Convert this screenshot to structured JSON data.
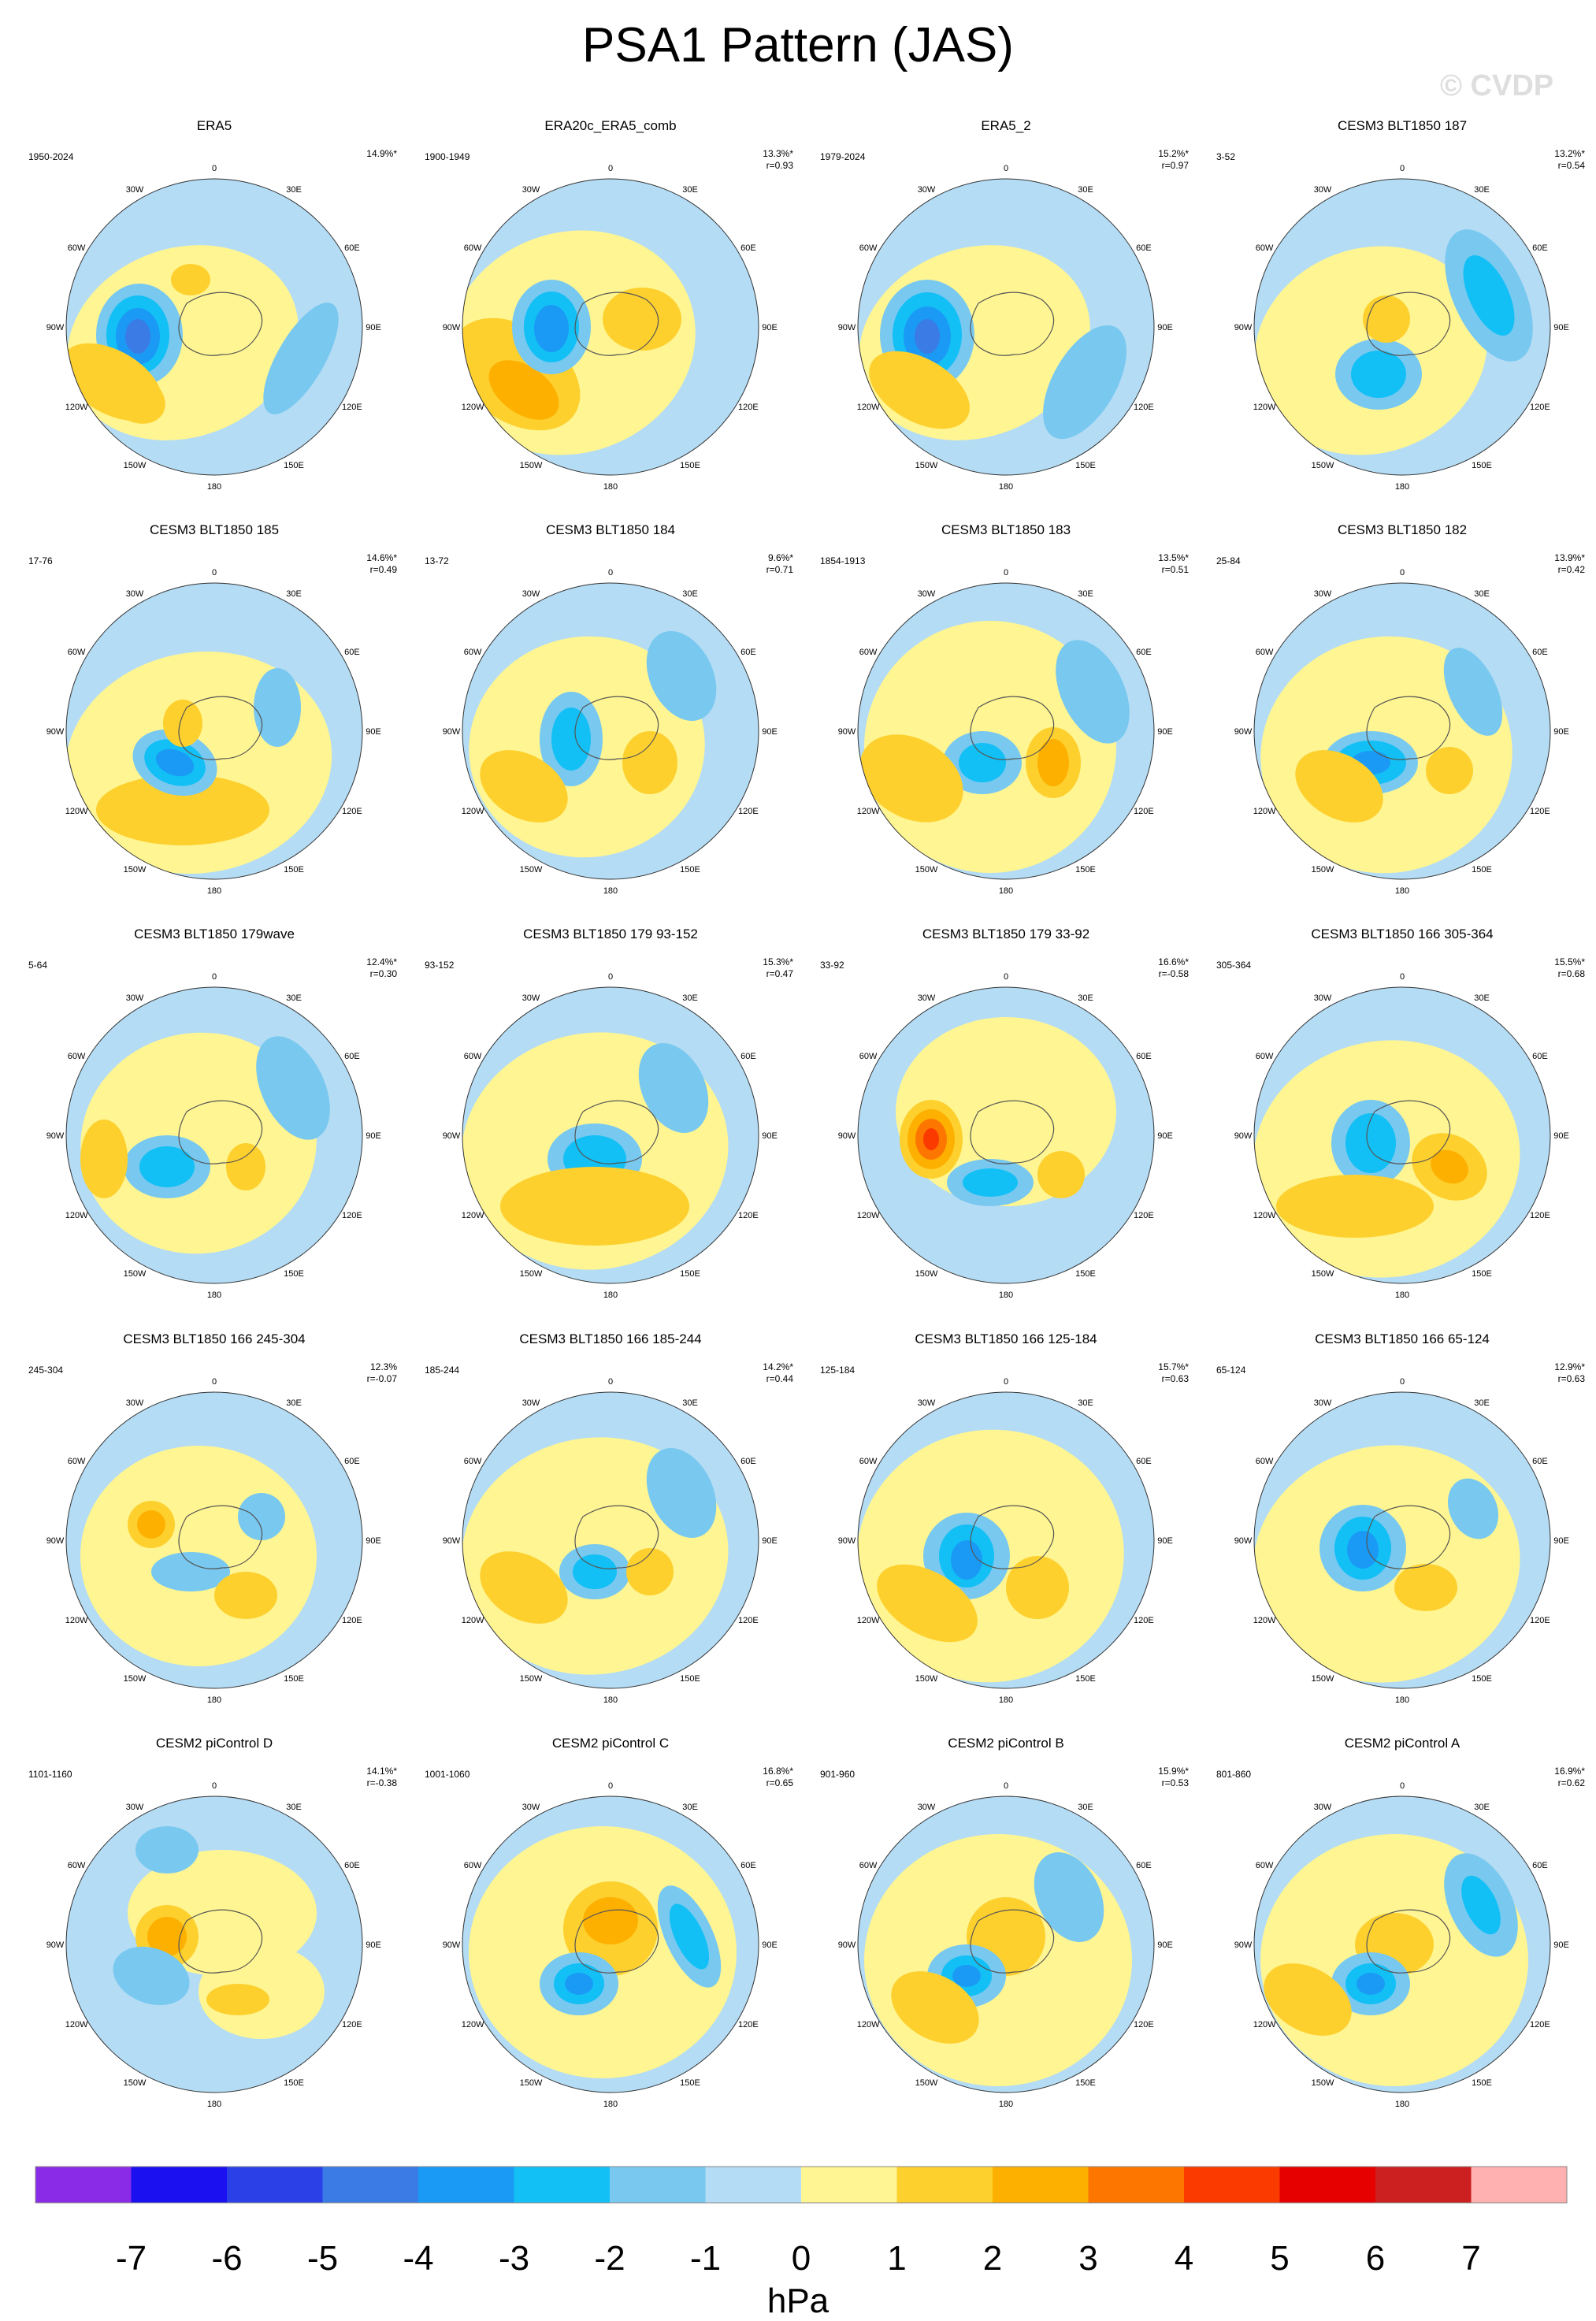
{
  "title": "PSA1 Pattern (JAS)",
  "watermark": "© CVDP",
  "colorbar": {
    "units": "hPa",
    "labels": [
      "-7",
      "-6",
      "-5",
      "-4",
      "-3",
      "-2",
      "-1",
      "0",
      "1",
      "2",
      "3",
      "4",
      "5",
      "6",
      "7"
    ],
    "colors": [
      "#8a2be8",
      "#1a10f0",
      "#2b40e6",
      "#3a7be6",
      "#1a9af5",
      "#12c0f5",
      "#78c8f0",
      "#b4dcf4",
      "#fff592",
      "#fdd02e",
      "#fdb000",
      "#fc7600",
      "#fb3a00",
      "#e60000",
      "#cc2020",
      "#ffb0b0"
    ]
  },
  "lon_labels": [
    "0",
    "30E",
    "60E",
    "90E",
    "120E",
    "150E",
    "180",
    "150W",
    "120W",
    "90W",
    "60W",
    "30W"
  ],
  "panels": [
    {
      "name": "ERA5",
      "period": "1950-2024",
      "pct": "14.9%*",
      "r": ""
    },
    {
      "name": "ERA20c_ERA5_comb",
      "period": "1900-1949",
      "pct": "13.3%*",
      "r": "r=0.93"
    },
    {
      "name": "ERA5_2",
      "period": "1979-2024",
      "pct": "15.2%*",
      "r": "r=0.97"
    },
    {
      "name": "CESM3 BLT1850 187",
      "period": "3-52",
      "pct": "13.2%*",
      "r": "r=0.54"
    },
    {
      "name": "CESM3 BLT1850 185",
      "period": "17-76",
      "pct": "14.6%*",
      "r": "r=0.49"
    },
    {
      "name": "CESM3 BLT1850 184",
      "period": "13-72",
      "pct": "9.6%*",
      "r": "r=0.71"
    },
    {
      "name": "CESM3 BLT1850 183",
      "period": "1854-1913",
      "pct": "13.5%*",
      "r": "r=0.51"
    },
    {
      "name": "CESM3 BLT1850 182",
      "period": "25-84",
      "pct": "13.9%*",
      "r": "r=0.42"
    },
    {
      "name": "CESM3 BLT1850 179wave",
      "period": "5-64",
      "pct": "12.4%*",
      "r": "r=0.30"
    },
    {
      "name": "CESM3 BLT1850 179 93-152",
      "period": "93-152",
      "pct": "15.3%*",
      "r": "r=0.47"
    },
    {
      "name": "CESM3 BLT1850 179 33-92",
      "period": "33-92",
      "pct": "16.6%*",
      "r": "r=-0.58"
    },
    {
      "name": "CESM3 BLT1850 166 305-364",
      "period": "305-364",
      "pct": "15.5%*",
      "r": "r=0.68"
    },
    {
      "name": "CESM3 BLT1850 166 245-304",
      "period": "245-304",
      "pct": "12.3%",
      "r": "r=-0.07"
    },
    {
      "name": "CESM3 BLT1850 166 185-244",
      "period": "185-244",
      "pct": "14.2%*",
      "r": "r=0.44"
    },
    {
      "name": "CESM3 BLT1850 166 125-184",
      "period": "125-184",
      "pct": "15.7%*",
      "r": "r=0.63"
    },
    {
      "name": "CESM3 BLT1850 166 65-124",
      "period": "65-124",
      "pct": "12.9%*",
      "r": "r=0.63"
    },
    {
      "name": "CESM2 piControl D",
      "period": "1101-1160",
      "pct": "14.1%*",
      "r": "r=-0.38"
    },
    {
      "name": "CESM2 piControl C",
      "period": "1001-1060",
      "pct": "16.8%*",
      "r": "r=0.65"
    },
    {
      "name": "CESM2 piControl B",
      "period": "901-960",
      "pct": "15.9%*",
      "r": "r=0.53"
    },
    {
      "name": "CESM2 piControl A",
      "period": "801-860",
      "pct": "16.9%*",
      "r": "r=0.62"
    }
  ]
}
